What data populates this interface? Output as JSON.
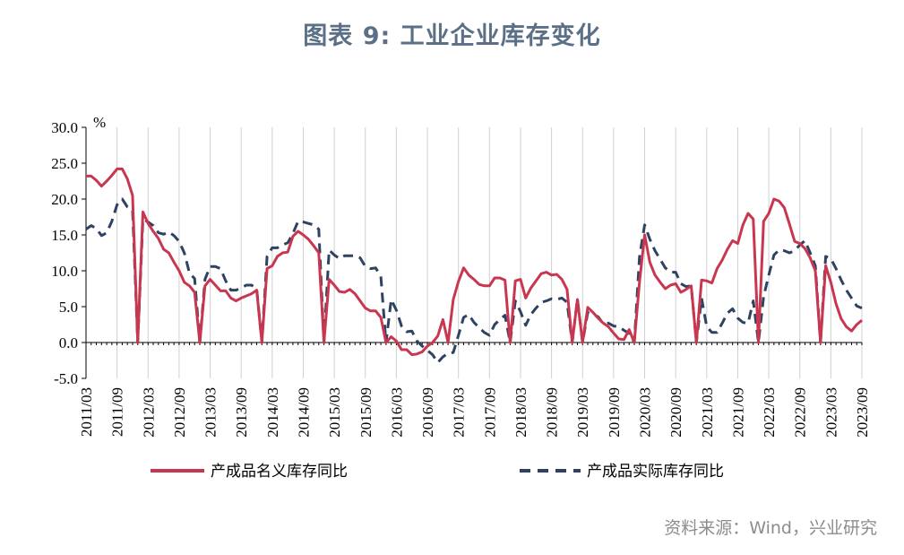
{
  "title": "图表 9:  工业企业库存变化",
  "source": "资料来源：Wind，兴业研究",
  "chart_data": {
    "type": "line",
    "unit": "%",
    "ylim": [
      -5,
      30
    ],
    "yticks": [
      "30.0",
      "25.0",
      "20.0",
      "15.0",
      "10.0",
      "5.0",
      "0.0",
      "-5.0"
    ],
    "xticks": [
      "2011/03",
      "2011/09",
      "2012/03",
      "2012/09",
      "2013/03",
      "2013/09",
      "2014/03",
      "2014/09",
      "2015/03",
      "2015/09",
      "2016/03",
      "2016/09",
      "2017/03",
      "2017/09",
      "2018/03",
      "2018/09",
      "2019/03",
      "2019/09",
      "2020/03",
      "2020/09",
      "2021/03",
      "2021/09",
      "2022/03",
      "2022/09",
      "2023/03",
      "2023/09"
    ],
    "grid": "vertical",
    "legend": "bottom",
    "x": [
      "2011/03",
      "2011/04",
      "2011/05",
      "2011/06",
      "2011/07",
      "2011/08",
      "2011/09",
      "2011/10",
      "2011/11",
      "2011/12",
      "2012/01",
      "2012/02",
      "2012/03",
      "2012/04",
      "2012/05",
      "2012/06",
      "2012/07",
      "2012/08",
      "2012/09",
      "2012/10",
      "2012/11",
      "2012/12",
      "2013/01",
      "2013/02",
      "2013/03",
      "2013/04",
      "2013/05",
      "2013/06",
      "2013/07",
      "2013/08",
      "2013/09",
      "2013/10",
      "2013/11",
      "2013/12",
      "2014/01",
      "2014/02",
      "2014/03",
      "2014/04",
      "2014/05",
      "2014/06",
      "2014/07",
      "2014/08",
      "2014/09",
      "2014/10",
      "2014/11",
      "2014/12",
      "2015/01",
      "2015/02",
      "2015/03",
      "2015/04",
      "2015/05",
      "2015/06",
      "2015/07",
      "2015/08",
      "2015/09",
      "2015/10",
      "2015/11",
      "2015/12",
      "2016/01",
      "2016/02",
      "2016/03",
      "2016/04",
      "2016/05",
      "2016/06",
      "2016/07",
      "2016/08",
      "2016/09",
      "2016/10",
      "2016/11",
      "2016/12",
      "2017/01",
      "2017/02",
      "2017/03",
      "2017/04",
      "2017/05",
      "2017/06",
      "2017/07",
      "2017/08",
      "2017/09",
      "2017/10",
      "2017/11",
      "2017/12",
      "2018/01",
      "2018/02",
      "2018/03",
      "2018/04",
      "2018/05",
      "2018/06",
      "2018/07",
      "2018/08",
      "2018/09",
      "2018/10",
      "2018/11",
      "2018/12",
      "2019/01",
      "2019/02",
      "2019/03",
      "2019/04",
      "2019/05",
      "2019/06",
      "2019/07",
      "2019/08",
      "2019/09",
      "2019/10",
      "2019/11",
      "2019/12",
      "2020/01",
      "2020/02",
      "2020/03",
      "2020/04",
      "2020/05",
      "2020/06",
      "2020/07",
      "2020/08",
      "2020/09",
      "2020/10",
      "2020/11",
      "2020/12",
      "2021/01",
      "2021/02",
      "2021/03",
      "2021/04",
      "2021/05",
      "2021/06",
      "2021/07",
      "2021/08",
      "2021/09",
      "2021/10",
      "2021/11",
      "2021/12",
      "2022/01",
      "2022/02",
      "2022/03",
      "2022/04",
      "2022/05",
      "2022/06",
      "2022/07",
      "2022/08",
      "2022/09",
      "2022/10",
      "2022/11",
      "2022/12",
      "2023/01",
      "2023/02",
      "2023/03",
      "2023/04",
      "2023/05",
      "2023/06",
      "2023/07",
      "2023/08",
      "2023/09"
    ],
    "series": [
      {
        "name": "产成品名义库存同比",
        "color": "#c8374f",
        "style": "solid",
        "values": [
          23.2,
          23.2,
          22.6,
          21.8,
          22.5,
          23.3,
          24.2,
          24.2,
          22.8,
          20.5,
          0.0,
          18.2,
          16.6,
          15.5,
          14.5,
          13.0,
          12.5,
          11.2,
          10.0,
          8.4,
          7.9,
          7.0,
          0.0,
          7.9,
          8.8,
          8.0,
          7.2,
          7.2,
          6.2,
          5.8,
          6.2,
          6.5,
          6.8,
          7.3,
          0.0,
          10.3,
          10.7,
          12.0,
          12.5,
          12.6,
          14.8,
          15.5,
          15.0,
          14.4,
          13.5,
          12.5,
          0.0,
          8.8,
          8.0,
          7.1,
          7.0,
          7.4,
          6.8,
          5.8,
          4.8,
          4.4,
          4.4,
          3.5,
          0.0,
          0.8,
          0.2,
          -1.0,
          -1.0,
          -1.7,
          -1.6,
          -1.3,
          -0.5,
          0.0,
          0.9,
          3.2,
          0.0,
          6.0,
          8.5,
          10.4,
          9.4,
          8.8,
          8.1,
          7.9,
          7.9,
          9.0,
          9.0,
          8.7,
          0.0,
          8.6,
          8.8,
          6.2,
          7.6,
          8.6,
          9.6,
          9.8,
          9.4,
          9.5,
          8.8,
          7.4,
          0.0,
          6.0,
          0.0,
          4.9,
          4.2,
          3.4,
          2.7,
          2.2,
          1.3,
          0.5,
          0.4,
          1.8,
          0.0,
          8.4,
          15.0,
          11.2,
          9.4,
          8.4,
          7.5,
          8.0,
          8.2,
          7.0,
          7.4,
          7.9,
          0.0,
          8.7,
          8.6,
          8.3,
          10.3,
          11.5,
          13.0,
          14.2,
          13.8,
          16.4,
          18.0,
          17.2,
          0.0,
          16.9,
          18.0,
          20.0,
          19.7,
          18.8,
          16.5,
          14.1,
          13.8,
          13.1,
          11.8,
          10.0,
          0.0,
          10.7,
          8.4,
          5.4,
          3.3,
          2.2,
          1.6,
          2.5,
          3.1
        ]
      },
      {
        "name": "产成品实际库存同比",
        "color": "#2e4262",
        "style": "dashed",
        "values": [
          15.8,
          16.3,
          15.9,
          14.9,
          15.3,
          16.9,
          19.2,
          20.0,
          18.9,
          18.5,
          0.0,
          17.2,
          16.8,
          16.3,
          15.3,
          15.1,
          15.4,
          14.9,
          14.1,
          12.5,
          9.7,
          8.9,
          0.0,
          8.8,
          10.6,
          10.6,
          10.3,
          8.6,
          7.3,
          7.3,
          7.6,
          8.0,
          8.0,
          7.5,
          0.0,
          12.0,
          13.2,
          13.2,
          13.6,
          13.9,
          15.2,
          16.9,
          16.8,
          16.6,
          16.4,
          15.8,
          0.0,
          12.9,
          12.2,
          11.7,
          12.1,
          12.1,
          12.1,
          11.8,
          10.6,
          10.3,
          10.4,
          9.2,
          0.0,
          6.0,
          4.5,
          2.3,
          1.5,
          1.6,
          0.2,
          -0.5,
          -1.1,
          -1.7,
          -2.8,
          -2.0,
          -1.5,
          -1.4,
          1.0,
          3.5,
          3.9,
          2.8,
          2.1,
          1.4,
          1.0,
          2.5,
          3.2,
          3.8,
          0.0,
          5.8,
          4.3,
          2.4,
          3.9,
          4.8,
          5.6,
          5.8,
          6.1,
          6.0,
          6.2,
          5.6,
          0.0,
          6.1,
          0.0,
          4.2,
          3.9,
          3.6,
          2.6,
          2.7,
          2.3,
          2.2,
          1.7,
          1.3,
          0.0,
          11.9,
          16.4,
          14.4,
          12.8,
          11.6,
          10.4,
          9.8,
          9.8,
          8.2,
          7.8,
          7.9,
          0.0,
          6.2,
          2.2,
          1.4,
          1.4,
          2.7,
          4.1,
          4.7,
          3.4,
          2.8,
          2.7,
          5.8,
          0.0,
          6.4,
          9.4,
          12.2,
          12.9,
          12.8,
          12.5,
          12.8,
          13.6,
          14.2,
          12.5,
          10.7,
          0.0,
          12.0,
          11.7,
          10.3,
          8.7,
          7.3,
          6.2,
          5.1,
          4.8
        ]
      }
    ]
  }
}
